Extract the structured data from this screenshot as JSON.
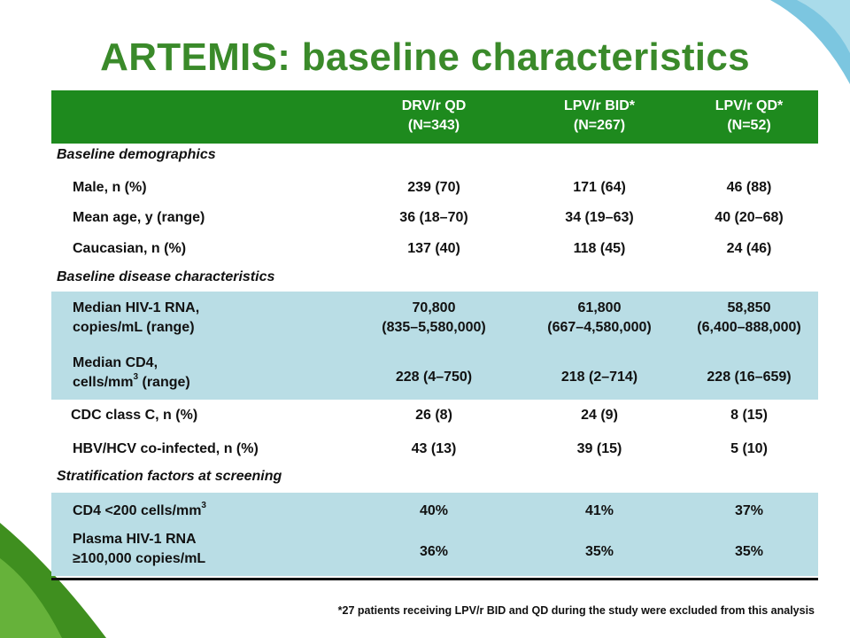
{
  "title": "ARTEMIS: baseline characteristics",
  "colors": {
    "title": "#3a8a2a",
    "header_bg": "#1e8a1e",
    "band_bg": "#b9dde5"
  },
  "header": {
    "col1": [
      "DRV/r QD",
      "(N=343)"
    ],
    "col2": [
      "LPV/r BID*",
      "(N=267)"
    ],
    "col3": [
      "LPV/r QD*",
      "(N=52)"
    ]
  },
  "sections": {
    "demographics": "Baseline demographics",
    "disease": "Baseline disease characteristics",
    "stratification": "Stratification factors at screening"
  },
  "rows": {
    "male": {
      "label": "Male, n (%)",
      "v": [
        "239 (70)",
        "171 (64)",
        "46 (88)"
      ]
    },
    "age": {
      "label": "Mean age, y (range)",
      "v": [
        "36 (18–70)",
        "34 (19–63)",
        "40 (20–68)"
      ]
    },
    "caucasian": {
      "label": "Caucasian, n (%)",
      "v": [
        "137 (40)",
        "118 (45)",
        "24 (46)"
      ]
    },
    "rna": {
      "label": [
        "Median HIV-1 RNA,",
        "copies/mL (range)"
      ],
      "v": [
        [
          "70,800",
          "(835–5,580,000)"
        ],
        [
          "61,800",
          "(667–4,580,000)"
        ],
        [
          "58,850",
          "(6,400–888,000)"
        ]
      ]
    },
    "cd4": {
      "label": [
        "Median CD4,",
        "cells/mm",
        "3",
        " (range)"
      ],
      "v": [
        "228 (4–750)",
        "218 (2–714)",
        "228 (16–659)"
      ]
    },
    "cdc": {
      "label": "CDC class C, n (%)",
      "v": [
        "26 (8)",
        "24 (9)",
        "8 (15)"
      ]
    },
    "hbv": {
      "label": "HBV/HCV co-infected, n (%)",
      "v": [
        "43 (13)",
        "39 (15)",
        "5 (10)"
      ]
    },
    "cd4_strat": {
      "label": [
        "CD4 <200 cells/mm",
        "3"
      ],
      "v": [
        "40%",
        "41%",
        "37%"
      ]
    },
    "rna_strat": {
      "label": [
        "Plasma HIV-1 RNA",
        "≥100,000 copies/mL"
      ],
      "v": [
        "36%",
        "35%",
        "35%"
      ]
    }
  },
  "footnote": "*27 patients receiving LPV/r BID and QD during the study were excluded from this analysis"
}
